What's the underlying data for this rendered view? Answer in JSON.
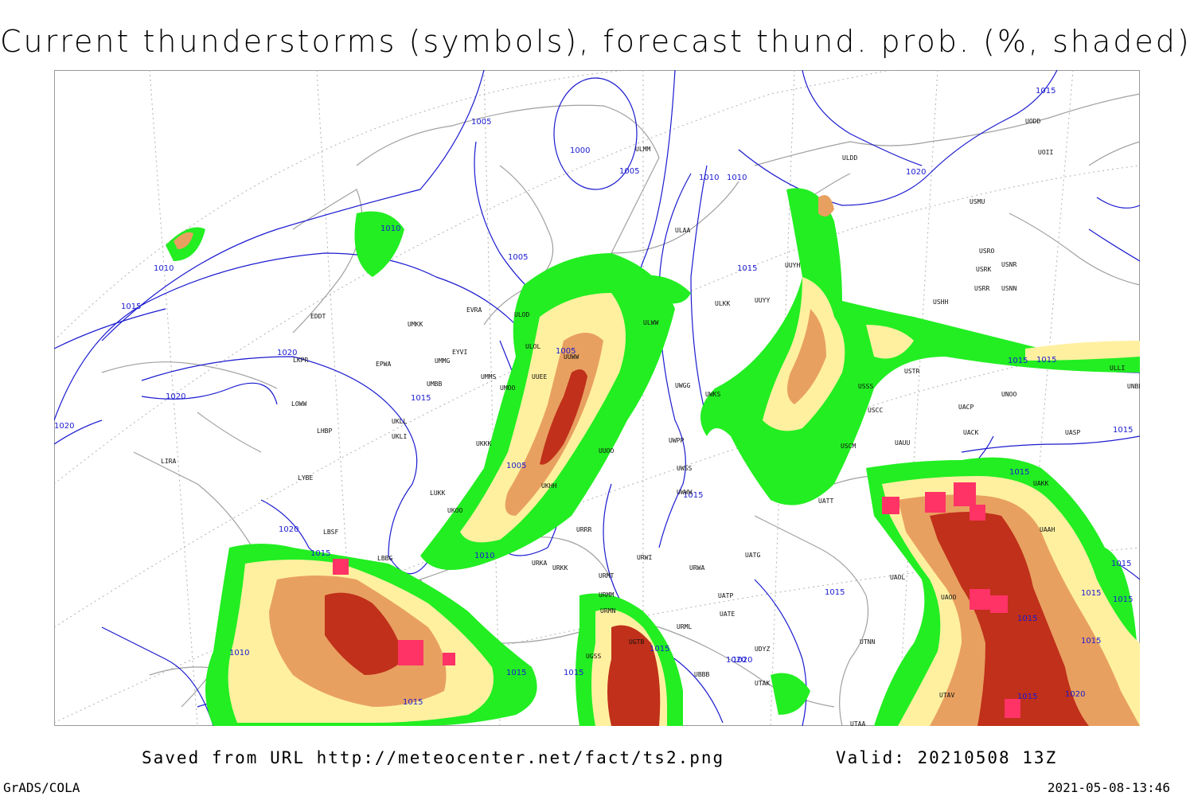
{
  "title": "Current thunderstorms (symbols), forecast thund. prob. (%, shaded)",
  "footer": {
    "source_text": "Saved from URL http://meteocenter.net/fact/ts2.png",
    "valid_text": "Valid: 20210508 13Z",
    "software": "GrADS/COLA",
    "timestamp": "2021-05-08-13:46"
  },
  "colors": {
    "isobar": "#1a1ad0",
    "coastline": "#a0a0a0",
    "gridline": "#b0b0b0",
    "prob_low": "#22ee22",
    "prob_mid": "#fff0a0",
    "prob_high": "#e8a060",
    "prob_max": "#c0301a",
    "storm_symbol": "#ff3366"
  },
  "isobar_labels": [
    "1005",
    "1000",
    "1005",
    "1010",
    "1010",
    "1020",
    "1015",
    "1010",
    "1010",
    "1005",
    "1015",
    "1015",
    "1020",
    "1020",
    "1020",
    "1015",
    "1005",
    "1005",
    "1015",
    "1015",
    "1020",
    "1015",
    "1010",
    "1015",
    "1015",
    "1015",
    "1015",
    "1015",
    "1015",
    "1015",
    "1020",
    "1010",
    "1015",
    "1015",
    "1020",
    "1015",
    "1015",
    "1015",
    "1015",
    "1020",
    "1015"
  ],
  "stations": [
    "ULMM",
    "ULDD",
    "UODD",
    "UOII",
    "USMU",
    "USRO",
    "USRK",
    "USNR",
    "USRR",
    "USNN",
    "USHH",
    "ULAA",
    "UUYH",
    "ULKK",
    "UUYY",
    "ULWW",
    "ULOL",
    "ULOD",
    "EVRA",
    "UMKK",
    "EDDT",
    "EYVI",
    "UMMG",
    "EPWA",
    "UMBB",
    "UMMS",
    "UMOO",
    "UUEE",
    "UUWW",
    "UWGG",
    "UWKS",
    "USSS",
    "USTR",
    "UNOO",
    "UNBB",
    "USCC",
    "UACP",
    "UACK",
    "UASP",
    "USCM",
    "UAUU",
    "UWPP",
    "UWSS",
    "UWWW",
    "UATT",
    "UAKK",
    "UKOO",
    "UKKK",
    "LUKK",
    "UKHH",
    "UUOO",
    "LOWW",
    "LKPR",
    "LHBP",
    "UKLI",
    "UKLL",
    "LIRA",
    "LYBE",
    "LBSF",
    "LBBG",
    "URKA",
    "URKK",
    "URMT",
    "URMM",
    "URMN",
    "URML",
    "URWI",
    "URWA",
    "URRR",
    "UATG",
    "UATP",
    "UATE",
    "UAOL",
    "UAOO",
    "UTNN",
    "UBBB",
    "UGTB",
    "UGSS",
    "UDYZ",
    "UTAK",
    "UTAV",
    "UTAA",
    "UAAH",
    "ULLI"
  ],
  "legend": {
    "scale": "probability"
  }
}
